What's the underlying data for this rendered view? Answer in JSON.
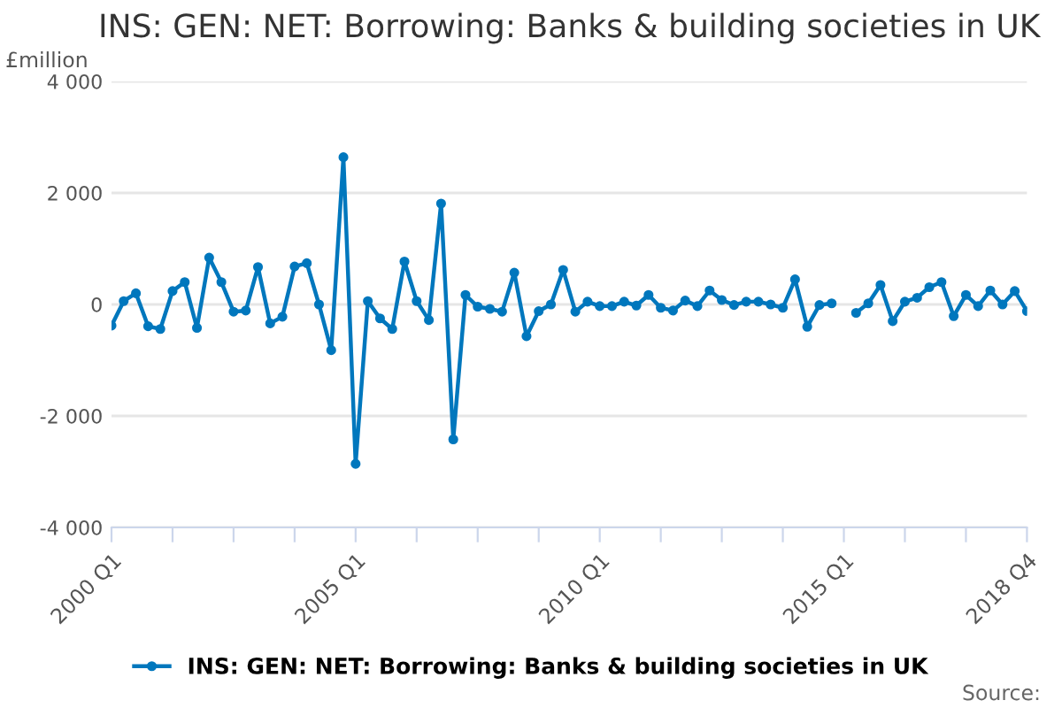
{
  "chart_data": {
    "type": "line",
    "title": "INS: GEN: NET: Borrowing: Banks & building societies in UK",
    "ylabel": "£million",
    "categories": [
      "2000 Q1",
      null,
      null,
      null,
      null,
      null,
      null,
      null,
      null,
      null,
      null,
      null,
      null,
      null,
      null,
      null,
      null,
      null,
      null,
      null,
      "2005 Q1",
      null,
      null,
      null,
      null,
      null,
      null,
      null,
      null,
      null,
      null,
      null,
      null,
      null,
      null,
      null,
      null,
      null,
      null,
      null,
      "2010 Q1",
      null,
      null,
      null,
      null,
      null,
      null,
      null,
      null,
      null,
      null,
      null,
      null,
      null,
      null,
      null,
      null,
      null,
      null,
      null,
      "2015 Q1",
      null,
      null,
      null,
      null,
      null,
      null,
      null,
      null,
      null,
      null,
      null,
      null,
      null,
      null,
      "2018 Q4"
    ],
    "series": [
      {
        "name": "INS: GEN: NET: Borrowing: Banks & building societies in UK",
        "color": "#0077bd",
        "values": [
          -380,
          60,
          200,
          -390,
          -440,
          240,
          400,
          -420,
          840,
          400,
          -130,
          -110,
          670,
          -340,
          -220,
          680,
          740,
          0,
          -820,
          2640,
          -2860,
          60,
          -250,
          -440,
          770,
          60,
          -280,
          1810,
          -2420,
          170,
          -40,
          -80,
          -130,
          570,
          -570,
          -120,
          0,
          620,
          -130,
          50,
          -30,
          -30,
          50,
          -20,
          170,
          -60,
          -110,
          70,
          -30,
          250,
          80,
          -10,
          50,
          50,
          0,
          -60,
          450,
          -400,
          -10,
          20,
          null,
          -150,
          20,
          350,
          -300,
          50,
          120,
          310,
          400,
          -210,
          170,
          -30,
          250,
          0,
          240,
          -120
        ]
      }
    ],
    "ylim": [
      -4000,
      4000
    ],
    "yticks": [
      {
        "value": -4000,
        "label": "-4 000"
      },
      {
        "value": -2000,
        "label": "-2 000"
      },
      0,
      {
        "value": 2000,
        "label": "2 000"
      },
      {
        "value": 4000,
        "label": "4 000"
      }
    ],
    "grid": "y",
    "legend": "bottom",
    "marker": "circle",
    "line_style": "solid",
    "annotations": [
      "Source:"
    ]
  }
}
